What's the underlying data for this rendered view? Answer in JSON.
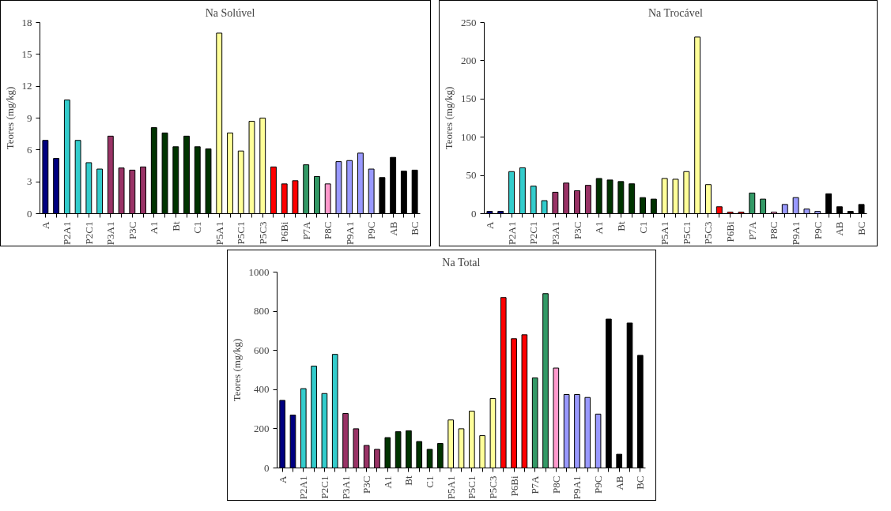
{
  "chart_data": [
    {
      "type": "bar",
      "title": "Na Solúvel",
      "ylabel": "Teores (mg/kg)",
      "categories": [
        "A",
        null,
        "P2A1",
        null,
        "P2C1",
        null,
        "P3A1",
        null,
        "P3C",
        null,
        "A1",
        null,
        "Bt",
        null,
        "C1",
        null,
        "P5A1",
        null,
        "P5C1",
        null,
        "P5C3",
        null,
        "P6Bi",
        null,
        "P7A",
        null,
        "P8C",
        null,
        "P9A1",
        null,
        "P9C",
        null,
        "AB",
        null,
        "BC"
      ],
      "values": [
        6.9,
        5.2,
        10.7,
        6.9,
        4.8,
        4.2,
        7.3,
        4.3,
        4.1,
        4.4,
        8.1,
        7.6,
        6.3,
        7.3,
        6.3,
        6.1,
        17.0,
        7.6,
        5.9,
        8.7,
        9.0,
        4.4,
        2.8,
        3.1,
        4.6,
        3.5,
        2.8,
        4.9,
        5.0,
        5.7,
        4.2,
        3.4,
        5.3,
        4.0,
        4.1
      ],
      "colors": [
        "#000080",
        "#000080",
        "#33cccc",
        "#33cccc",
        "#33cccc",
        "#33cccc",
        "#993366",
        "#993366",
        "#993366",
        "#993366",
        "#003300",
        "#003300",
        "#003300",
        "#003300",
        "#003300",
        "#003300",
        "#ffff99",
        "#ffff99",
        "#ffff99",
        "#ffff99",
        "#ffff99",
        "#ff0000",
        "#ff0000",
        "#ff0000",
        "#339966",
        "#339966",
        "#ff99cc",
        "#9999ff",
        "#9999ff",
        "#9999ff",
        "#9999ff",
        "#000000",
        "#000000",
        "#000000",
        "#000000"
      ],
      "ylim": [
        0,
        18
      ],
      "yticks": [
        0,
        3,
        6,
        9,
        12,
        15,
        18
      ]
    },
    {
      "type": "bar",
      "title": "Na Trocável",
      "ylabel": "Teores (mg/kg)",
      "categories": [
        "A",
        null,
        "P2A1",
        null,
        "P2C1",
        null,
        "P3A1",
        null,
        "P3C",
        null,
        "A1",
        null,
        "Bt",
        null,
        "C1",
        null,
        "P5A1",
        null,
        "P5C1",
        null,
        "P5C3",
        null,
        "P6Bi",
        null,
        "P7A",
        null,
        "P8C",
        null,
        "P9A1",
        null,
        "P9C",
        null,
        "AB",
        null,
        "BC"
      ],
      "values": [
        3,
        3,
        55,
        60,
        36,
        17,
        28,
        40,
        30,
        37,
        46,
        44,
        42,
        39,
        21,
        19,
        46,
        45,
        55,
        231,
        38,
        9,
        2,
        2,
        27,
        19,
        2,
        12,
        21,
        6,
        3,
        26,
        9,
        3,
        12
      ],
      "colors": [
        "#000080",
        "#000080",
        "#33cccc",
        "#33cccc",
        "#33cccc",
        "#33cccc",
        "#993366",
        "#993366",
        "#993366",
        "#993366",
        "#003300",
        "#003300",
        "#003300",
        "#003300",
        "#003300",
        "#003300",
        "#ffff99",
        "#ffff99",
        "#ffff99",
        "#ffff99",
        "#ffff99",
        "#ff0000",
        "#ff0000",
        "#ff0000",
        "#339966",
        "#339966",
        "#ff99cc",
        "#9999ff",
        "#9999ff",
        "#9999ff",
        "#9999ff",
        "#000000",
        "#000000",
        "#000000",
        "#000000"
      ],
      "ylim": [
        0,
        250
      ],
      "yticks": [
        0,
        50,
        100,
        150,
        200,
        250
      ]
    },
    {
      "type": "bar",
      "title": "Na Total",
      "ylabel": "Teores (mg/kg)",
      "categories": [
        "A",
        null,
        "P2A1",
        null,
        "P2C1",
        null,
        "P3A1",
        null,
        "P3C",
        null,
        "A1",
        null,
        "Bt",
        null,
        "C1",
        null,
        "P5A1",
        null,
        "P5C1",
        null,
        "P5C3",
        null,
        "P6Bi",
        null,
        "P7A",
        null,
        "P8C",
        null,
        "P9A1",
        null,
        "P9C",
        null,
        "AB",
        null,
        "BC"
      ],
      "values": [
        345,
        270,
        405,
        520,
        380,
        580,
        278,
        200,
        115,
        95,
        155,
        185,
        190,
        135,
        95,
        125,
        245,
        200,
        290,
        165,
        355,
        870,
        660,
        680,
        460,
        890,
        510,
        375,
        375,
        360,
        275,
        760,
        70,
        740,
        575
      ],
      "colors": [
        "#000080",
        "#000080",
        "#33cccc",
        "#33cccc",
        "#33cccc",
        "#33cccc",
        "#993366",
        "#993366",
        "#993366",
        "#993366",
        "#003300",
        "#003300",
        "#003300",
        "#003300",
        "#003300",
        "#003300",
        "#ffff99",
        "#ffff99",
        "#ffff99",
        "#ffff99",
        "#ffff99",
        "#ff0000",
        "#ff0000",
        "#ff0000",
        "#339966",
        "#339966",
        "#ff99cc",
        "#9999ff",
        "#9999ff",
        "#9999ff",
        "#9999ff",
        "#000000",
        "#000000",
        "#000000",
        "#000000"
      ],
      "ylim": [
        0,
        1000
      ],
      "yticks": [
        0,
        200,
        400,
        600,
        800,
        1000
      ]
    }
  ]
}
